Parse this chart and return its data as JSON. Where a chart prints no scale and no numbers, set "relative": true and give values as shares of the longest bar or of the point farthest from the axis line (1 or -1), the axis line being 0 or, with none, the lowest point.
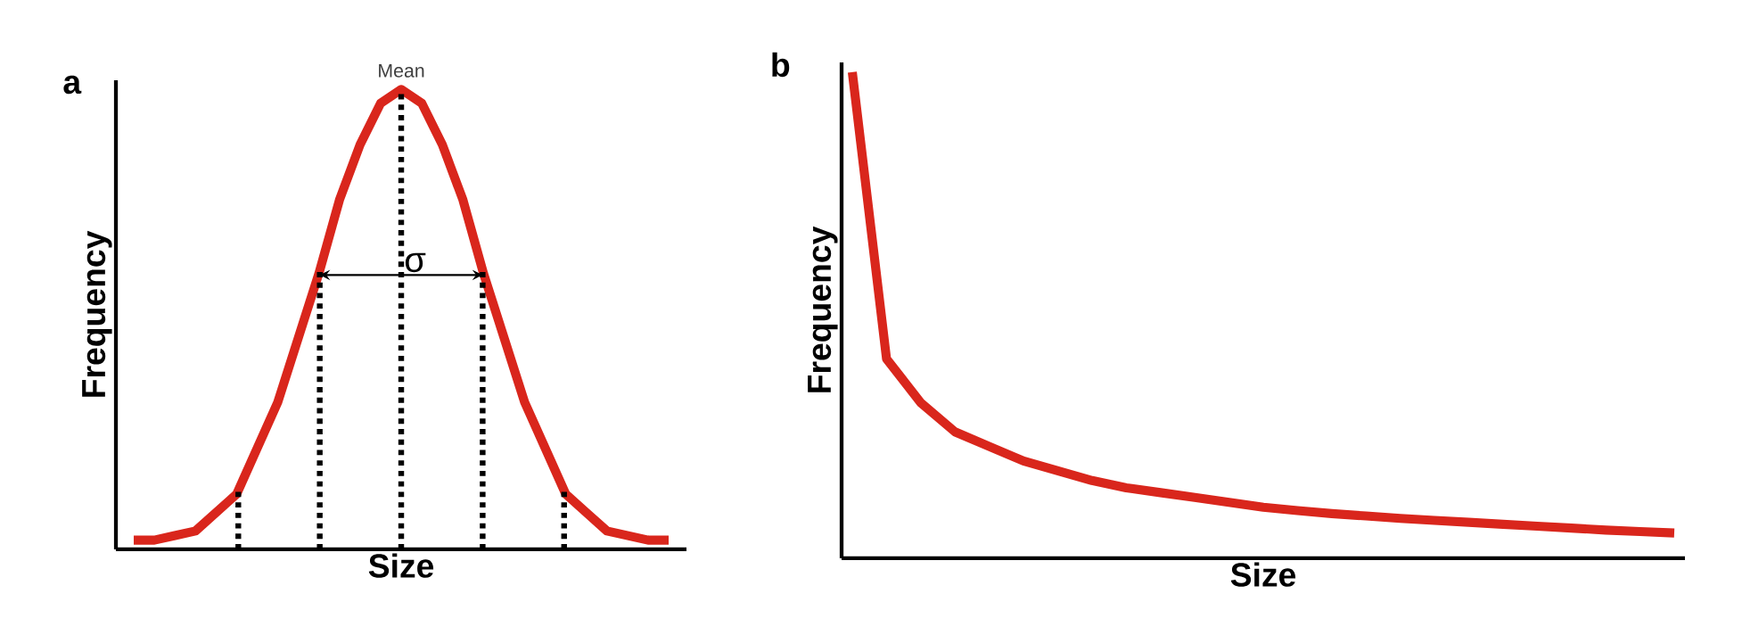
{
  "chart_data": [
    {
      "type": "line",
      "title": "a",
      "xlabel": "Size",
      "ylabel": "Frequency",
      "relative": true,
      "categories": [
        null,
        null,
        null,
        null,
        null,
        null,
        null,
        null,
        null,
        null,
        null,
        null,
        null,
        null,
        null,
        null,
        null,
        null,
        null,
        null,
        null,
        null,
        null,
        null,
        null,
        null,
        null
      ],
      "series": [
        {
          "color": "#d9261c",
          "values": [
            0.02,
            0.02,
            0.03,
            0.04,
            0.08,
            0.12,
            0.22,
            0.32,
            0.46,
            0.6,
            0.76,
            0.88,
            0.97,
            1,
            0.97,
            0.88,
            0.76,
            0.6,
            0.46,
            0.32,
            0.22,
            0.12,
            0.08,
            0.04,
            0.03,
            0.02,
            0.02
          ]
        }
      ],
      "annotations": [
        "Mean",
        "σ"
      ]
    },
    {
      "type": "line",
      "title": "b",
      "xlabel": "Size",
      "ylabel": "Frequency",
      "relative": true,
      "categories": [
        null,
        null,
        null,
        null,
        null,
        null,
        null,
        null,
        null,
        null,
        null,
        null,
        null,
        null,
        null,
        null,
        null,
        null,
        null,
        null,
        null,
        null,
        null,
        null,
        null
      ],
      "series": [
        {
          "color": "#d9261c",
          "values": [
            1,
            0.41,
            0.32,
            0.26,
            0.23,
            0.2,
            0.18,
            0.16,
            0.145,
            0.135,
            0.125,
            0.115,
            0.105,
            0.098,
            0.092,
            0.087,
            0.082,
            0.078,
            0.074,
            0.07,
            0.066,
            0.062,
            0.058,
            0.055,
            0.052
          ]
        }
      ]
    }
  ]
}
